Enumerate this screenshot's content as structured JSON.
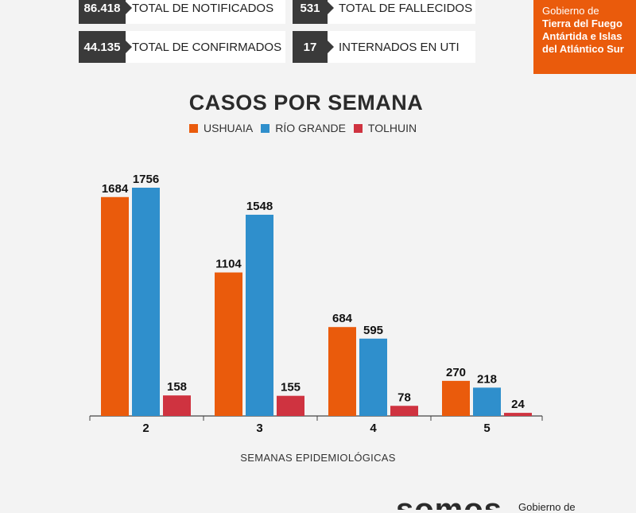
{
  "stats": [
    {
      "value": "86.418",
      "label": "TOTAL DE NOTIFICADOS"
    },
    {
      "value": "531",
      "label": "TOTAL DE FALLECIDOS"
    },
    {
      "value": "44.135",
      "label": "TOTAL DE CONFIRMADOS"
    },
    {
      "value": "17",
      "label": "INTERNADOS EN UTI"
    }
  ],
  "gov": {
    "line1": "Gobierno de",
    "line2": "Tierra del Fuego",
    "line3": "Antártida e Islas",
    "line4": "del Atlántico Sur"
  },
  "footer": {
    "logo": "somos",
    "org": "Gobierno de"
  },
  "chart_data": {
    "type": "bar",
    "title": "CASOS POR SEMANA",
    "xlabel": "SEMANAS EPIDEMIOLÓGICAS",
    "ylabel": "",
    "categories": [
      "2",
      "3",
      "4",
      "5"
    ],
    "series": [
      {
        "name": "USHUAIA",
        "color": "#ea5b0c",
        "values": [
          1684,
          1104,
          684,
          270
        ]
      },
      {
        "name": "RÍO GRANDE",
        "color": "#2f8fcc",
        "values": [
          1756,
          1548,
          595,
          218
        ]
      },
      {
        "name": "TOLHUIN",
        "color": "#cf3340",
        "values": [
          158,
          155,
          78,
          24
        ]
      }
    ],
    "ylim": [
      0,
      1756
    ],
    "grid": false,
    "legend": "top-center"
  }
}
